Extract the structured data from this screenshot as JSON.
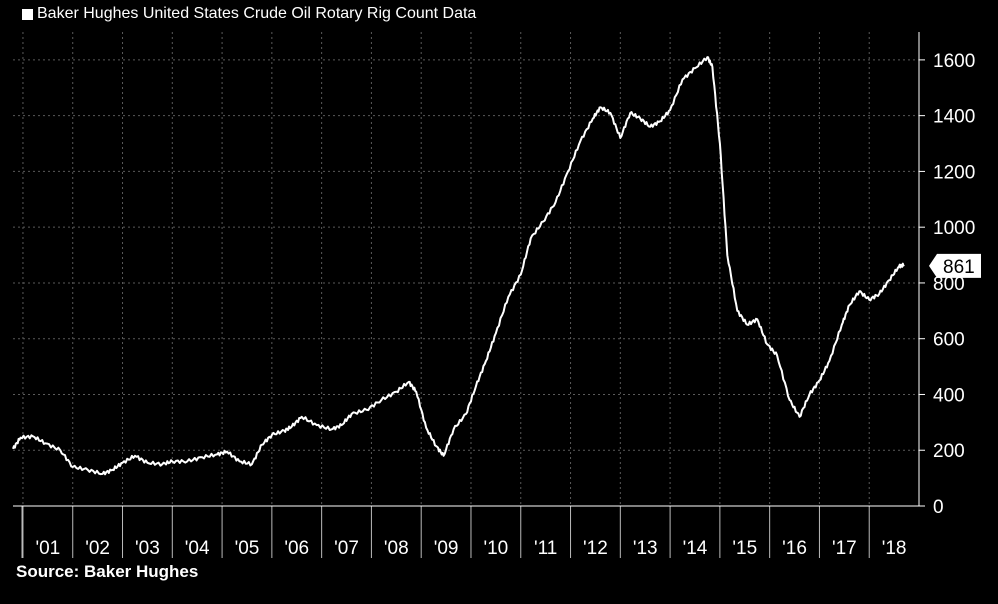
{
  "legend": {
    "label": "Baker Hughes United States Crude Oil Rotary Rig Count Data"
  },
  "source": "Source: Baker Hughes",
  "colors": {
    "background": "#000000",
    "line": "#ffffff",
    "grid": "#5a5a5a"
  },
  "chart_data": {
    "type": "line",
    "title": "",
    "xlabel": "",
    "ylabel": "",
    "ylim": [
      0,
      1700
    ],
    "xlim": [
      2000.8,
      2019.0
    ],
    "yticks": [
      0,
      200,
      400,
      600,
      800,
      1000,
      1200,
      1400,
      1600
    ],
    "y_axis_position": "right",
    "grid": true,
    "legend_position": "top-left",
    "x_categories": [
      "'01",
      "'02",
      "'03",
      "'04",
      "'05",
      "'06",
      "'07",
      "'08",
      "'09",
      "'10",
      "'11",
      "'12",
      "'13",
      "'14",
      "'15",
      "'16",
      "'17",
      "'18"
    ],
    "last_value_label": "861",
    "series": [
      {
        "name": "Baker Hughes United States Crude Oil Rotary Rig Count Data",
        "x": [
          2000.8,
          2000.95,
          2001.2,
          2001.45,
          2001.75,
          2002.0,
          2002.3,
          2002.6,
          2002.8,
          2003.0,
          2003.25,
          2003.5,
          2003.8,
          2004.0,
          2004.3,
          2004.6,
          2004.9,
          2005.1,
          2005.35,
          2005.6,
          2005.8,
          2006.0,
          2006.25,
          2006.4,
          2006.6,
          2006.9,
          2007.2,
          2007.4,
          2007.6,
          2007.9,
          2008.2,
          2008.5,
          2008.75,
          2008.9,
          2009.1,
          2009.3,
          2009.45,
          2009.65,
          2009.9,
          2010.1,
          2010.3,
          2010.5,
          2010.75,
          2011.0,
          2011.2,
          2011.45,
          2011.7,
          2011.95,
          2012.2,
          2012.45,
          2012.6,
          2012.8,
          2013.0,
          2013.2,
          2013.4,
          2013.6,
          2013.8,
          2014.0,
          2014.25,
          2014.5,
          2014.75,
          2014.85,
          2015.0,
          2015.15,
          2015.35,
          2015.55,
          2015.75,
          2015.95,
          2016.15,
          2016.4,
          2016.6,
          2016.8,
          2017.0,
          2017.2,
          2017.45,
          2017.6,
          2017.8,
          2018.0,
          2018.2,
          2018.4,
          2018.6,
          2018.7
        ],
        "values": [
          205,
          245,
          250,
          225,
          200,
          140,
          130,
          115,
          130,
          155,
          180,
          155,
          150,
          160,
          160,
          175,
          185,
          195,
          160,
          150,
          220,
          255,
          270,
          285,
          320,
          290,
          275,
          290,
          330,
          345,
          380,
          410,
          445,
          410,
          280,
          215,
          180,
          275,
          330,
          430,
          520,
          620,
          750,
          830,
          960,
          1020,
          1090,
          1200,
          1310,
          1390,
          1430,
          1410,
          1320,
          1410,
          1390,
          1360,
          1380,
          1420,
          1530,
          1570,
          1610,
          1575,
          1300,
          900,
          700,
          650,
          670,
          580,
          540,
          380,
          320,
          400,
          450,
          520,
          650,
          720,
          770,
          740,
          760,
          810,
          860,
          865
        ]
      }
    ]
  }
}
